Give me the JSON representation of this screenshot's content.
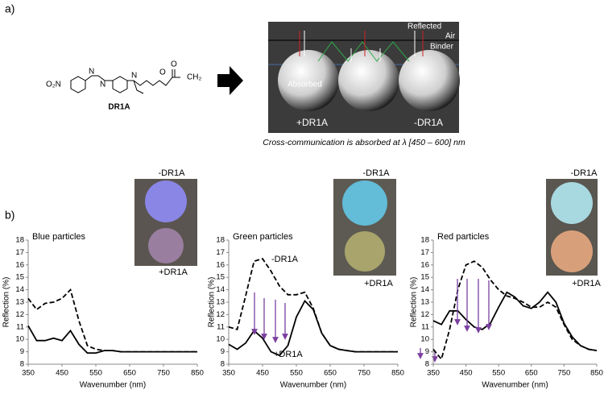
{
  "panel_labels": [
    "a)",
    "b)"
  ],
  "panel_a": {
    "structure": {
      "labels": [
        "O₂N",
        "N",
        "N",
        "N",
        "O",
        "O",
        "CH₂"
      ],
      "name": "DR1A"
    },
    "diagram": {
      "reflected": "Reflected",
      "air": "Air",
      "binder": "Binder",
      "absorbed": "Absorbed",
      "left": "+DR1A",
      "right": "-DR1A"
    },
    "caption": "Cross-communication is absorbed at λ [450 – 600] nm"
  },
  "chart_data": [
    {
      "type": "line",
      "title": "Blue particles",
      "x_label": "Wavenumber (nm)",
      "y_label": "Reflection (%)",
      "x": [
        350,
        375,
        400,
        425,
        450,
        475,
        500,
        525,
        550,
        575,
        600,
        625,
        650,
        675,
        700,
        725,
        750,
        775,
        800,
        825,
        850
      ],
      "series": [
        {
          "name": "-DR1A",
          "color": "#000000",
          "line_style": "dashed",
          "values": [
            13.3,
            12.4,
            12.9,
            13.0,
            13.3,
            14.0,
            11.5,
            9.5,
            9.2,
            9.1,
            9.1,
            9.0,
            9.0,
            9.0,
            9.0,
            9.0,
            9.0,
            9.0,
            9.0,
            9.0,
            9.0
          ]
        },
        {
          "name": "+DR1A",
          "color": "#000000",
          "line_style": "solid",
          "values": [
            11.1,
            9.9,
            9.9,
            10.1,
            9.9,
            10.7,
            9.6,
            8.9,
            8.9,
            9.1,
            9.1,
            9.0,
            9.0,
            9.0,
            9.0,
            9.0,
            9.0,
            9.0,
            9.0,
            9.0,
            9.0
          ]
        }
      ],
      "xlim": [
        350,
        850
      ],
      "xticks": [
        350,
        450,
        550,
        650,
        750,
        850
      ],
      "ylim": [
        8,
        18
      ],
      "yticks": [
        8,
        9,
        10,
        11,
        12,
        13,
        14,
        15,
        16,
        17,
        18
      ],
      "grid": false
    },
    {
      "type": "line",
      "title": "Green particles",
      "x_label": "Wavenumber (nm)",
      "y_label": "Reflection (%)",
      "x": [
        350,
        375,
        400,
        425,
        450,
        475,
        500,
        525,
        550,
        575,
        600,
        625,
        650,
        675,
        700,
        725,
        750,
        775,
        800,
        825,
        850
      ],
      "series": [
        {
          "name": "-DR1A",
          "color": "#000000",
          "line_style": "dashed",
          "values": [
            11.0,
            10.8,
            13.5,
            16.3,
            16.5,
            15.5,
            14.3,
            13.6,
            13.6,
            13.8,
            12.5,
            10.5,
            9.5,
            9.2,
            9.1,
            9.0,
            9.0,
            9.0,
            9.0,
            9.0,
            9.0
          ]
        },
        {
          "name": "+DR1A",
          "color": "#000000",
          "line_style": "solid",
          "values": [
            9.6,
            9.2,
            9.7,
            10.7,
            10.1,
            9.0,
            8.7,
            9.5,
            11.8,
            13.1,
            12.4,
            10.5,
            9.5,
            9.2,
            9.1,
            9.0,
            9.0,
            9.0,
            9.0,
            9.0,
            9.0
          ]
        }
      ],
      "xlim": [
        350,
        850
      ],
      "xticks": [
        350,
        450,
        550,
        650,
        750,
        850
      ],
      "ylim": [
        8,
        18
      ],
      "yticks": [
        8,
        9,
        10,
        11,
        12,
        13,
        14,
        15,
        16,
        17,
        18
      ],
      "grid": false
    },
    {
      "type": "line",
      "title": "Red particles",
      "x_label": "Wavenumber (nm)",
      "y_label": "Reflection (%)",
      "x": [
        350,
        375,
        400,
        425,
        450,
        475,
        500,
        525,
        550,
        575,
        600,
        625,
        650,
        675,
        700,
        725,
        750,
        775,
        800,
        825,
        850
      ],
      "series": [
        {
          "name": "-DR1A",
          "color": "#000000",
          "line_style": "dashed",
          "values": [
            9.2,
            8.4,
            10.8,
            14.0,
            16.0,
            16.3,
            15.8,
            14.8,
            14.0,
            13.5,
            13.3,
            13.0,
            12.6,
            12.6,
            13.0,
            12.6,
            11.2,
            10.0,
            9.5,
            9.2,
            9.1
          ]
        },
        {
          "name": "+DR1A",
          "color": "#000000",
          "line_style": "solid",
          "values": [
            11.5,
            11.2,
            12.3,
            12.3,
            11.6,
            11.0,
            10.8,
            11.3,
            12.6,
            13.8,
            13.4,
            12.7,
            12.5,
            13.0,
            13.8,
            13.0,
            11.3,
            10.2,
            9.5,
            9.2,
            9.1
          ]
        }
      ],
      "xlim": [
        350,
        850
      ],
      "xticks": [
        350,
        450,
        550,
        650,
        750,
        850
      ],
      "ylim": [
        8,
        18
      ],
      "yticks": [
        8,
        9,
        10,
        11,
        12,
        13,
        14,
        15,
        16,
        17,
        18
      ],
      "grid": false
    }
  ]
}
